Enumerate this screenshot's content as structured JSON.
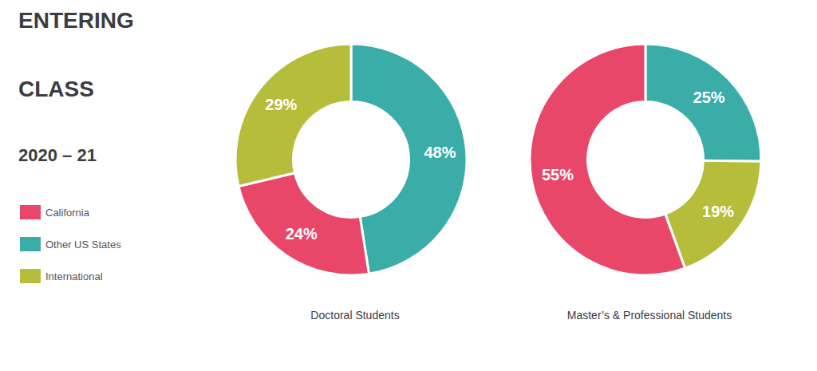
{
  "title": [
    "ENTERING",
    "CLASS",
    "2020 – 21"
  ],
  "legend": "left",
  "series": [
    {
      "name": "California",
      "color": "#e8476a"
    },
    {
      "name": "Other US States",
      "color": "#3aada8"
    },
    {
      "name": "International",
      "color": "#b5bd3a"
    }
  ],
  "chart_data": [
    {
      "type": "pie",
      "title": "Doctoral Students",
      "categories": [
        "Other US States",
        "California",
        "International"
      ],
      "values": [
        48,
        24,
        29
      ],
      "value_labels": [
        "48%",
        "24%",
        "29%"
      ],
      "data_labels": true
    },
    {
      "type": "pie",
      "title": "Master’s & Professional Students",
      "categories": [
        "Other US States",
        "International",
        "California"
      ],
      "values": [
        25,
        19,
        55
      ],
      "value_labels": [
        "25%",
        "19%",
        "55%"
      ],
      "data_labels": true
    }
  ]
}
